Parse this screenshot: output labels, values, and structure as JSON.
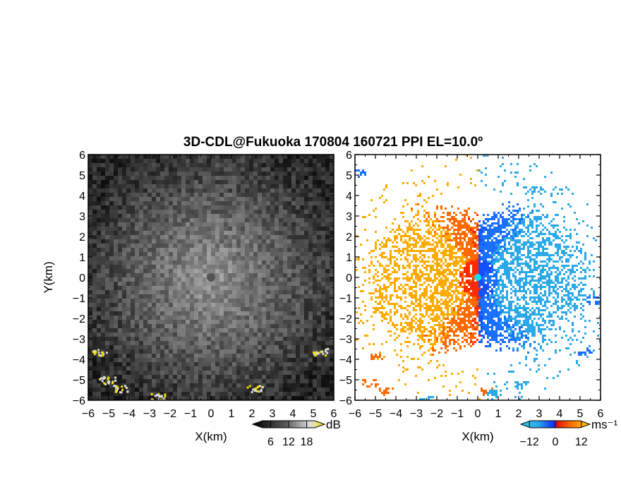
{
  "title": "3D-CDL@Fukuoka 170804 160721 PPI EL=10.0º",
  "colors": {
    "background": "#ffffff",
    "echo_dark": "#2a2a2a",
    "echo_light": "#9a9a9a",
    "highlight_yellow": "#f2e000",
    "approach_blue": "#1450ff",
    "approach_lightblue": "#2aa8e8",
    "receding_red": "#ff2a00",
    "receding_orange": "#ffaa00"
  },
  "chart_data": [
    {
      "type": "heatmap",
      "panel": "left",
      "quantity": "signal-to-noise ratio",
      "xlabel": "X(km)",
      "ylabel": "Y(km)",
      "xlim": [
        -6,
        6
      ],
      "ylim": [
        -6,
        6
      ],
      "xticks": [
        "−6",
        "−5",
        "−4",
        "−3",
        "−2",
        "−1",
        "0",
        "1",
        "2",
        "3",
        "4",
        "5",
        "6"
      ],
      "yticks": [
        "6",
        "5",
        "4",
        "3",
        "2",
        "1",
        "0",
        "−1",
        "−2",
        "−3",
        "−4",
        "−5",
        "−6"
      ],
      "colorbar": {
        "unit": "dB",
        "ticks": [
          "6",
          "12",
          "18"
        ],
        "range": [
          0,
          24
        ]
      },
      "features": [
        {
          "desc": "bright clutter patch",
          "x": -5.5,
          "y": -3.6
        },
        {
          "desc": "bright clutter patch",
          "x": -5.1,
          "y": -5.0
        },
        {
          "desc": "bright clutter patch",
          "x": -4.5,
          "y": -5.4
        },
        {
          "desc": "bright clutter patch",
          "x": -2.6,
          "y": -5.8
        },
        {
          "desc": "bright clutter patch",
          "x": 2.1,
          "y": -5.4
        },
        {
          "desc": "bright clutter patch",
          "x": 5.3,
          "y": -3.6
        }
      ]
    },
    {
      "type": "heatmap",
      "panel": "right",
      "quantity": "Doppler velocity",
      "xlabel": "X(km)",
      "ylabel": "Y(km)",
      "xlim": [
        -6,
        6
      ],
      "ylim": [
        -6,
        6
      ],
      "xticks": [
        "−6",
        "−5",
        "−4",
        "−3",
        "−2",
        "−1",
        "0",
        "1",
        "2",
        "3",
        "4",
        "5",
        "6"
      ],
      "yticks": [
        "6",
        "5",
        "4",
        "3",
        "2",
        "1",
        "0",
        "−1",
        "−2",
        "−3",
        "−4",
        "−5",
        "−6"
      ],
      "colorbar": {
        "unit": "ms⁻¹",
        "ticks": [
          "−12",
          "0",
          "12"
        ],
        "range": [
          -16,
          16
        ]
      },
      "clusters": [
        {
          "x": -5.0,
          "y": -3.8,
          "v": 6
        },
        {
          "x": -5.3,
          "y": -5.1,
          "v": 7
        },
        {
          "x": -4.5,
          "y": -5.5,
          "v": 8
        },
        {
          "x": -2.6,
          "y": -5.9,
          "v": -13
        },
        {
          "x": 0.4,
          "y": -5.5,
          "v": 7
        },
        {
          "x": 0.7,
          "y": -5.6,
          "v": -13
        },
        {
          "x": 2.1,
          "y": -5.2,
          "v": -13
        },
        {
          "x": 2.8,
          "y": 4.3,
          "v": -14
        },
        {
          "x": 5.6,
          "y": -1.1,
          "v": -6
        },
        {
          "x": 5.2,
          "y": -3.6,
          "v": -6
        },
        {
          "x": -5.8,
          "y": 5.1,
          "v": -6
        }
      ]
    }
  ]
}
